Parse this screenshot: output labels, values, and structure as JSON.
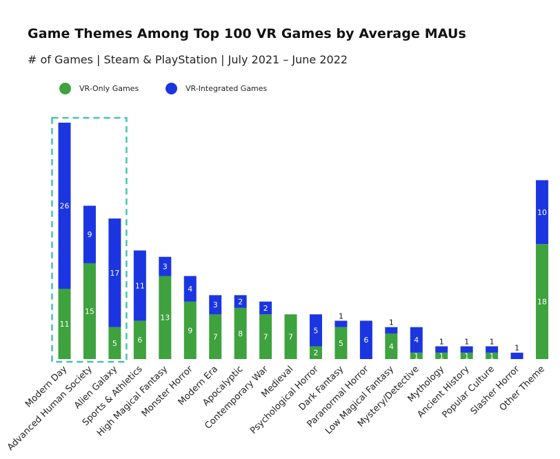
{
  "title": "Game Themes Among Top 100 VR Games by Average MAUs",
  "subtitle": "# of Games | Steam & PlayStation | July 2021 – June 2022",
  "legend": [
    {
      "label": "VR-Only Games",
      "color": "#3ea23e"
    },
    {
      "label": "VR-Integrated Games",
      "color": "#1b36e0"
    }
  ],
  "chart_data": {
    "type": "bar",
    "stacked": true,
    "categories": [
      "Modern Day",
      "Advanced Human Society",
      "Alien Galaxy",
      "Sports & Athletics",
      "High Magical Fantasy",
      "Monster Horror",
      "Modern Era",
      "Apocalyptic",
      "Contemporary War",
      "Medieval",
      "Psychological Horror",
      "Dark Fantasy",
      "Paranormal Horror",
      "Low Magical Fantasy",
      "Mystery/Detective",
      "Mythology",
      "Ancient History",
      "Popular Culture",
      "Slasher Horror",
      "Other Theme"
    ],
    "series": [
      {
        "name": "VR-Only Games",
        "color": "#3ea23e",
        "values": [
          11,
          15,
          5,
          6,
          13,
          9,
          7,
          8,
          7,
          7,
          2,
          5,
          0,
          4,
          1,
          1,
          1,
          1,
          0,
          18
        ]
      },
      {
        "name": "VR-Integrated Games",
        "color": "#1b36e0",
        "values": [
          26,
          9,
          17,
          11,
          3,
          4,
          3,
          2,
          2,
          0,
          5,
          1,
          6,
          1,
          4,
          1,
          1,
          1,
          1,
          10
        ]
      }
    ],
    "highlight": [
      "Modern Day",
      "Advanced Human Society",
      "Alien Galaxy"
    ],
    "ylim": [
      0,
      37
    ],
    "grid": false,
    "legend_position": "top-left"
  }
}
